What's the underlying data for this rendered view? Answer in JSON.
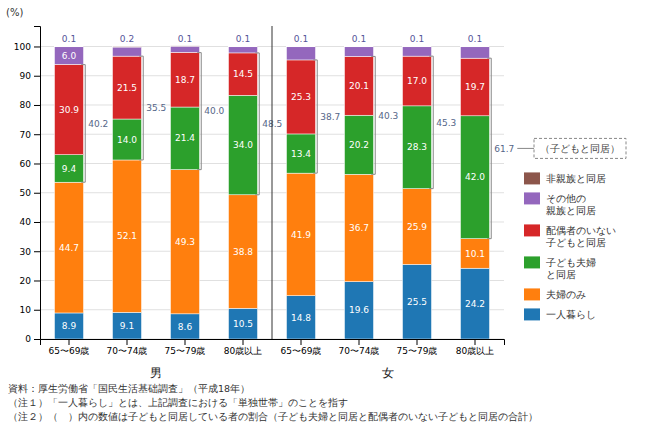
{
  "chart_data": {
    "type": "bar",
    "stacked": true,
    "grid": true,
    "data_labels": true,
    "legend": "right",
    "y_label": "(%)",
    "categories": [
      "65〜69歳",
      "70〜74歳",
      "75〜79歳",
      "80歳以上",
      "65〜69歳",
      "70〜74歳",
      "75〜79歳",
      "80歳以上"
    ],
    "groups": [
      "男",
      "女"
    ],
    "ylim": [
      0,
      107
    ],
    "yticks": [
      0,
      10,
      20,
      30,
      40,
      50,
      60,
      70,
      80,
      90,
      100
    ],
    "series": [
      {
        "name": "一人暮らし",
        "values": [
          8.9,
          9.1,
          8.6,
          10.5,
          14.8,
          19.6,
          25.5,
          24.2
        ],
        "value_labels": [
          "8.9",
          "9.1",
          "8.6",
          "10.5",
          "14.8",
          "19.6",
          "25.5",
          "24.2"
        ]
      },
      {
        "name": "夫婦のみ",
        "values": [
          44.7,
          52.1,
          49.3,
          38.8,
          41.9,
          36.7,
          25.9,
          10.1
        ],
        "value_labels": [
          "44.7",
          "52.1",
          "49.3",
          "38.8",
          "41.9",
          "36.7",
          "25.9",
          "10.1"
        ]
      },
      {
        "name": "子ども夫婦\nと同居",
        "values": [
          9.4,
          14.0,
          21.4,
          34.0,
          13.4,
          20.2,
          28.3,
          42.0
        ],
        "value_labels": [
          "9.4",
          "14.0",
          "21.4",
          "34.0",
          "13.4",
          "20.2",
          "28.3",
          "42.0"
        ]
      },
      {
        "name": "配偶者のいない\n子どもと同居",
        "values": [
          30.9,
          21.5,
          18.7,
          14.5,
          25.3,
          20.1,
          17.0,
          19.7
        ],
        "value_labels": [
          "30.9",
          "21.5",
          "18.7",
          "14.5",
          "25.3",
          "20.1",
          "17.0",
          "19.7"
        ]
      },
      {
        "name": "その他の\n親族と同居",
        "values": [
          6.0,
          3.1,
          2.1,
          2.1,
          4.5,
          3.3,
          3.2,
          3.9
        ],
        "value_labels": [
          "6.0",
          null,
          null,
          null,
          null,
          null,
          null,
          null
        ]
      },
      {
        "name": "非親族と同居",
        "values": [
          0.1,
          0.2,
          0.1,
          0.1,
          0.1,
          0.1,
          0.1,
          0.1
        ],
        "value_labels": [
          "0.1",
          "0.2",
          "0.1",
          "0.1",
          "0.1",
          "0.1",
          "0.1",
          "0.1"
        ]
      }
    ],
    "brackets": {
      "label": "（子どもと同居）",
      "values": [
        40.2,
        35.5,
        40.0,
        48.5,
        38.7,
        40.3,
        45.3,
        61.7
      ],
      "value_labels": [
        "40.2",
        "35.5",
        "40.0",
        "48.5",
        "38.7",
        "40.3",
        "45.3",
        "61.7"
      ]
    },
    "notes": [
      "資料：厚生労働省「国民生活基础調査」（平成18年）",
      "（注１）「一人暮らし」とは、上記調査における「単独世帯」のことを指す",
      "（注２）（　）内の数値は子どもと同居している者の割合（子ども夫婦と同居と配偶者のいない子どもと同居の合計）"
    ]
  }
}
